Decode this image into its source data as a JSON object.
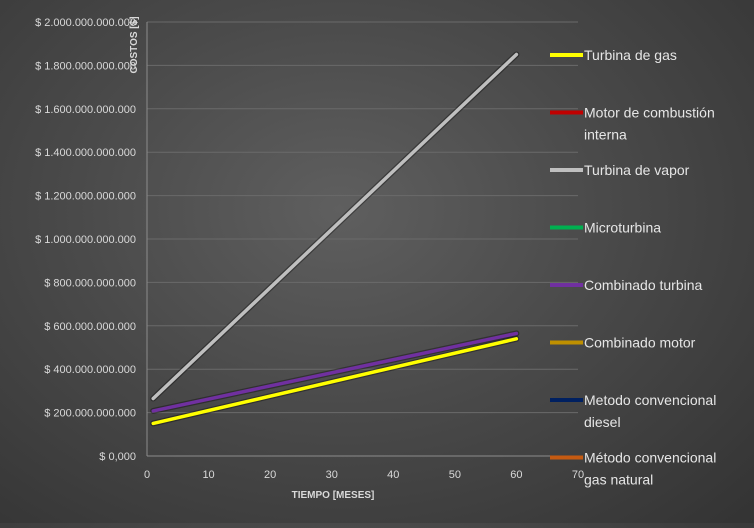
{
  "chart_data": {
    "type": "line",
    "xlabel": "TIEMPO [MESES]",
    "ylabel": "COSTOS [$]",
    "xlim": [
      0,
      70
    ],
    "ylim": [
      0,
      2000000000000
    ],
    "x_ticks": [
      0,
      10,
      20,
      30,
      40,
      50,
      60,
      70
    ],
    "y_ticks": [
      0,
      200000000000,
      400000000000,
      600000000000,
      800000000000,
      1000000000000,
      1200000000000,
      1400000000000,
      1600000000000,
      1800000000000,
      2000000000000
    ],
    "x_tick_labels": [
      "0",
      "10",
      "20",
      "30",
      "40",
      "50",
      "60",
      "70"
    ],
    "y_tick_labels": [
      "$ 0,000",
      "$ 200.000.000.000",
      "$ 400.000.000.000",
      "$ 600.000.000.000",
      "$ 800.000.000.000",
      "$ 1.000.000.000.000",
      "$ 1.200.000.000.000",
      "$ 1.400.000.000.000",
      "$ 1.600.000.000.000",
      "$ 1.800.000.000.000",
      "$ 2.000.000.000.000"
    ],
    "grid": "horizontal",
    "legend_position": "right",
    "series": [
      {
        "name": "Turbina de gas",
        "legend_lines": [
          "Turbina de gas"
        ],
        "color": "#ffff00",
        "x": [
          1,
          60
        ],
        "y": [
          150000000000,
          540000000000
        ]
      },
      {
        "name": "Motor de combustión interna",
        "legend_lines": [
          "Motor de combustión",
          "interna"
        ],
        "color": "#c00000",
        "x": [],
        "y": []
      },
      {
        "name": "Turbina de vapor",
        "legend_lines": [
          "Turbina de vapor"
        ],
        "color": "#bfbfbf",
        "x": [
          1,
          60
        ],
        "y": [
          265000000000,
          1850000000000
        ]
      },
      {
        "name": "Microturbina",
        "legend_lines": [
          "Microturbina"
        ],
        "color": "#00b050",
        "x": [],
        "y": []
      },
      {
        "name": "Combinado turbina",
        "legend_lines": [
          "Combinado turbina"
        ],
        "color": "#7030a0",
        "x": [
          1,
          60
        ],
        "y": [
          208000000000,
          565000000000
        ]
      },
      {
        "name": "Combinado motor",
        "legend_lines": [
          "Combinado motor"
        ],
        "color": "#bf9000",
        "x": [],
        "y": []
      },
      {
        "name": "Metodo convencional diesel",
        "legend_lines": [
          "Metodo convencional",
          "diesel"
        ],
        "color": "#002060",
        "x": [],
        "y": []
      },
      {
        "name": "Método convencional gas natural",
        "legend_lines": [
          "Método convencional",
          "gas natural"
        ],
        "color": "#c55a11",
        "x": [],
        "y": []
      }
    ]
  }
}
